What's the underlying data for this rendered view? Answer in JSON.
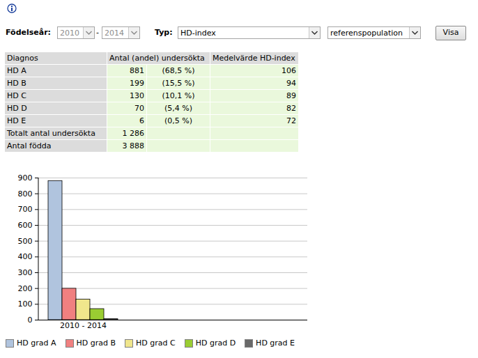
{
  "form": {
    "birth_year_label": "Födelseår:",
    "from": "2010",
    "separator": "-",
    "to": "2014",
    "type_label": "Typ:",
    "type": "HD-index",
    "population": "referenspopulation",
    "button": "Visa"
  },
  "table": {
    "header": [
      "Diagnos",
      "Antal (andel) undersökta",
      "Medelvärde HD-index"
    ],
    "rows": [
      [
        "HD A",
        881,
        "(68,5 %)",
        106
      ],
      [
        "HD B",
        199,
        "(15,5 %)",
        94
      ],
      [
        "HD C",
        130,
        "(10,1 %)",
        89
      ],
      [
        "HD D",
        70,
        "(5,4 %)",
        82
      ],
      [
        "HD E",
        6,
        "(0,5 %)",
        72
      ]
    ],
    "total": [
      "Totalt antal undersökta",
      "1 286"
    ],
    "births": [
      "Antal födda",
      "3 888"
    ]
  },
  "chart_data": {
    "type": "bar",
    "categories": [
      "2010 - 2014"
    ],
    "series": [
      {
        "name": "HD grad A",
        "color": "#b0c4de",
        "values": [
          881
        ]
      },
      {
        "name": "HD grad B",
        "color": "#f08080",
        "values": [
          199
        ]
      },
      {
        "name": "HD grad C",
        "color": "#f0e68c",
        "values": [
          130
        ]
      },
      {
        "name": "HD grad D",
        "color": "#9acd32",
        "values": [
          70
        ]
      },
      {
        "name": "HD grad E",
        "color": "#696969",
        "values": [
          6
        ]
      }
    ],
    "ylim": [
      0,
      900
    ],
    "yticks": [
      0,
      100,
      200,
      300,
      400,
      500,
      600,
      700,
      800,
      900
    ],
    "grid": true,
    "legend": "bottom"
  }
}
